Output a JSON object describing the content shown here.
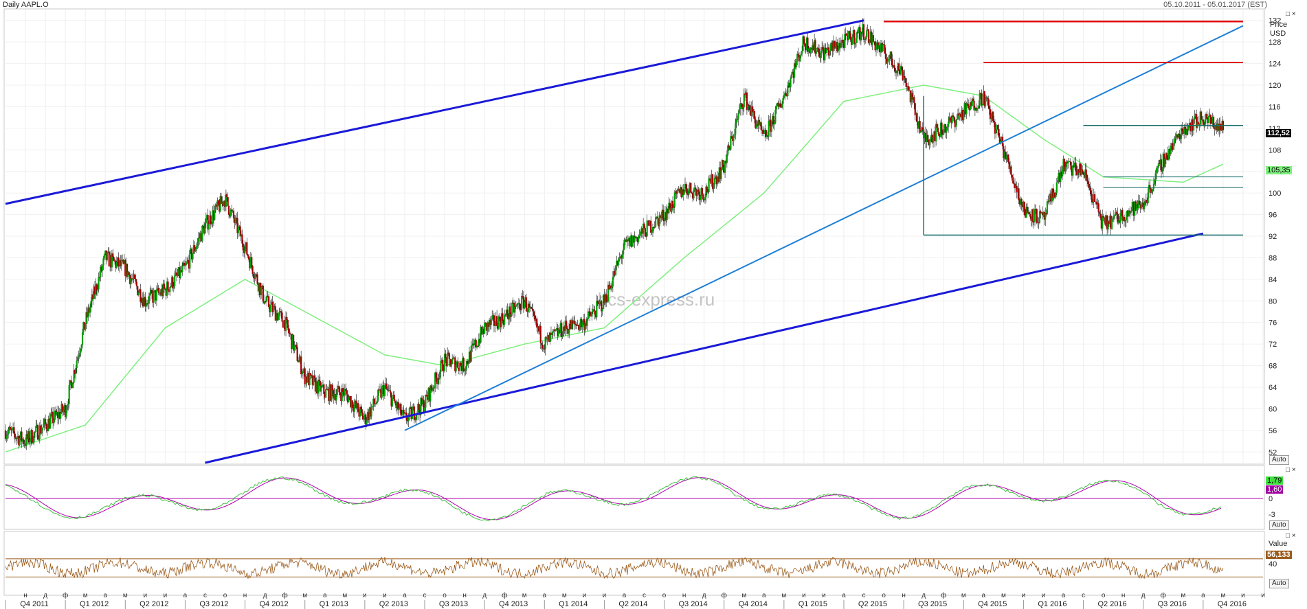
{
  "header": {
    "title": "Daily AAPL.O",
    "date_range": "05.10.2011 - 05.01.2017 (EST)"
  },
  "watermark": "bcs-express.ru",
  "panel_controls": {
    "auto_label": "Auto",
    "close_label": "□ ×"
  },
  "price_axis": {
    "title": "Price",
    "unit": "USD",
    "ticks": [
      "52",
      "56",
      "60",
      "64",
      "68",
      "72",
      "76",
      "80",
      "84",
      "88",
      "92",
      "96",
      "100",
      "104",
      "108",
      "112",
      "116",
      "120",
      "124",
      "128",
      "132"
    ]
  },
  "macd_axis": {
    "ticks": [
      "0",
      "-3"
    ],
    "value1": "1,79",
    "value2": "1,60"
  },
  "rsi_axis": {
    "title": "Value",
    "value": "56,133",
    "tick": "40"
  },
  "tags": {
    "last_price": "112,52",
    "ma_value": "105,35"
  },
  "months": [
    "н",
    "д",
    "ф",
    "м",
    "а",
    "м",
    "и",
    "и",
    "а",
    "с",
    "о",
    "н",
    "д",
    "ф",
    "м",
    "а",
    "м",
    "и",
    "и",
    "а",
    "с",
    "о",
    "н",
    "д",
    "ф",
    "м",
    "а",
    "м",
    "и",
    "и",
    "а",
    "с",
    "о",
    "н",
    "д",
    "ф",
    "м",
    "а",
    "м",
    "и",
    "и",
    "а",
    "с",
    "о",
    "н",
    "д",
    "ф",
    "м",
    "а",
    "м",
    "и",
    "и",
    "а",
    "с",
    "о",
    "н",
    "д",
    "ф",
    "м",
    "а",
    "м",
    "и",
    "и",
    "а",
    "с",
    "о",
    "н",
    "д"
  ],
  "quarters": [
    "Q4 2011",
    "Q1 2012",
    "Q2 2012",
    "Q3 2012",
    "Q4 2012",
    "Q1 2013",
    "Q2 2013",
    "Q3 2013",
    "Q4 2013",
    "Q1 2014",
    "Q2 2014",
    "Q3 2014",
    "Q4 2014",
    "Q1 2015",
    "Q2 2015",
    "Q3 2015",
    "Q4 2015",
    "Q1 2016",
    "Q2 2016",
    "Q3 2016",
    "Q4 2016"
  ],
  "colors": {
    "up_candle": "#00a000",
    "down_candle": "#a00000",
    "ma": "#7ef07e",
    "channel": "#1a1ad8",
    "trendline": "#1e7fd6",
    "resistance": "#e00000",
    "range": "#1a6f6f",
    "macd": "#40c040",
    "signal": "#b000b0",
    "rsi": "#9a5a1a"
  },
  "chart_data": {
    "type": "candlestick",
    "symbol": "AAPL.O",
    "period": "Daily",
    "ylim": [
      50,
      134
    ],
    "x_start": "2011-10",
    "x_end": "2017-01",
    "price_path": [
      [
        "2011-10",
        56
      ],
      [
        "2011-11",
        54
      ],
      [
        "2011-12",
        57
      ],
      [
        "2012-01",
        60
      ],
      [
        "2012-02",
        76
      ],
      [
        "2012-03",
        88
      ],
      [
        "2012-04",
        86
      ],
      [
        "2012-05",
        80
      ],
      [
        "2012-06",
        82
      ],
      [
        "2012-07",
        86
      ],
      [
        "2012-08",
        94
      ],
      [
        "2012-09",
        99
      ],
      [
        "2012-10",
        90
      ],
      [
        "2012-11",
        80
      ],
      [
        "2012-12",
        76
      ],
      [
        "2013-01",
        66
      ],
      [
        "2013-02",
        63
      ],
      [
        "2013-03",
        63
      ],
      [
        "2013-04",
        58
      ],
      [
        "2013-05",
        64
      ],
      [
        "2013-06",
        58
      ],
      [
        "2013-07",
        61
      ],
      [
        "2013-08",
        69
      ],
      [
        "2013-09",
        68
      ],
      [
        "2013-10",
        75
      ],
      [
        "2013-11",
        77
      ],
      [
        "2013-12",
        80
      ],
      [
        "2014-01",
        72
      ],
      [
        "2014-02",
        75
      ],
      [
        "2014-03",
        76
      ],
      [
        "2014-04",
        80
      ],
      [
        "2014-05",
        90
      ],
      [
        "2014-06",
        93
      ],
      [
        "2014-07",
        96
      ],
      [
        "2014-08",
        101
      ],
      [
        "2014-09",
        100
      ],
      [
        "2014-10",
        105
      ],
      [
        "2014-11",
        118
      ],
      [
        "2014-12",
        110
      ],
      [
        "2015-01",
        118
      ],
      [
        "2015-02",
        128
      ],
      [
        "2015-03",
        126
      ],
      [
        "2015-04",
        128
      ],
      [
        "2015-05",
        130
      ],
      [
        "2015-06",
        126
      ],
      [
        "2015-07",
        122
      ],
      [
        "2015-08",
        110
      ],
      [
        "2015-09",
        112
      ],
      [
        "2015-10",
        115
      ],
      [
        "2015-11",
        118
      ],
      [
        "2015-12",
        108
      ],
      [
        "2016-01",
        97
      ],
      [
        "2016-02",
        95
      ],
      [
        "2016-03",
        105
      ],
      [
        "2016-04",
        104
      ],
      [
        "2016-05",
        94
      ],
      [
        "2016-06",
        96
      ],
      [
        "2016-07",
        98
      ],
      [
        "2016-08",
        106
      ],
      [
        "2016-09",
        112
      ],
      [
        "2016-10",
        114
      ],
      [
        "2016-11",
        112
      ]
    ],
    "moving_average": [
      [
        "2011-10",
        52
      ],
      [
        "2012-02",
        57
      ],
      [
        "2012-06",
        75
      ],
      [
        "2012-10",
        84
      ],
      [
        "2013-01",
        78
      ],
      [
        "2013-05",
        70
      ],
      [
        "2013-08",
        68
      ],
      [
        "2013-12",
        72
      ],
      [
        "2014-04",
        75
      ],
      [
        "2014-08",
        88
      ],
      [
        "2014-12",
        100
      ],
      [
        "2015-04",
        117
      ],
      [
        "2015-08",
        120
      ],
      [
        "2015-11",
        118
      ],
      [
        "2016-02",
        110
      ],
      [
        "2016-05",
        103
      ],
      [
        "2016-09",
        102
      ],
      [
        "2016-11",
        105.35
      ]
    ],
    "last_price": 112.52,
    "ma_last": 105.35,
    "trendlines": {
      "channel_upper": [
        [
          "2011-10",
          98
        ],
        [
          "2015-05",
          132
        ]
      ],
      "channel_lower": [
        [
          "2012-08",
          50
        ],
        [
          "2016-10",
          92.5
        ]
      ],
      "rising_trendline": [
        [
          "2013-06",
          56
        ],
        [
          "2016-12",
          131
        ]
      ],
      "resistance_1": {
        "price": 131.8,
        "from": "2015-06",
        "to": "2016-12"
      },
      "resistance_2": {
        "price": 124.2,
        "from": "2015-11",
        "to": "2016-12"
      },
      "range_top": {
        "price": 112.52,
        "from": "2016-04",
        "to": "2016-12"
      },
      "range_bottom": {
        "price": 92.2,
        "from": "2015-08",
        "to": "2016-12"
      },
      "level_1": {
        "price": 103,
        "from": "2016-05",
        "to": "2016-12"
      },
      "level_2": {
        "price": 101,
        "from": "2016-05",
        "to": "2016-12"
      }
    },
    "indicators": {
      "macd": {
        "last": 1.79,
        "signal_last": 1.6,
        "ticks": [
          0,
          -3
        ]
      },
      "rsi": {
        "last": 56.133,
        "band_upper": 60,
        "band_lower": 40
      }
    }
  }
}
